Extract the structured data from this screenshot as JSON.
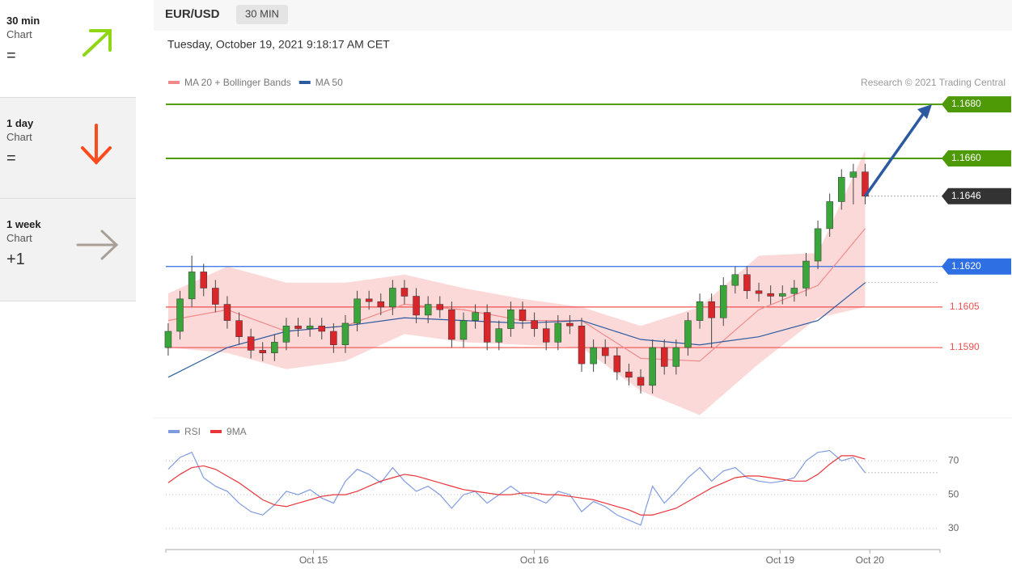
{
  "sidebar": [
    {
      "period": "30 min",
      "label": "Chart",
      "rating": "="
    },
    {
      "period": "1 day",
      "label": "Chart",
      "rating": "="
    },
    {
      "period": "1 week",
      "label": "Chart",
      "rating": "+1"
    }
  ],
  "header": {
    "symbol": "EUR/USD",
    "interval": "30 MIN",
    "timestamp": "Tuesday, October 19, 2021 9:18:17 AM CET"
  },
  "chart_data": [
    {
      "type": "candlestick",
      "credit": "Research © 2021 Trading Central",
      "open": [
        1.159,
        1.1596,
        1.1608,
        1.1618,
        1.1612,
        1.1606,
        1.16,
        1.1594,
        1.1589,
        1.1588,
        1.1592,
        1.1598,
        1.1597,
        1.1598,
        1.1596,
        1.1591,
        1.1599,
        1.1608,
        1.1607,
        1.1605,
        1.1612,
        1.1609,
        1.1602,
        1.1606,
        1.1604,
        1.1593,
        1.16,
        1.1603,
        1.1592,
        1.1597,
        1.1604,
        1.16,
        1.1597,
        1.1592,
        1.1599,
        1.1598,
        1.1584,
        1.159,
        1.1587,
        1.1581,
        1.1579,
        1.1576,
        1.159,
        1.1583,
        1.159,
        1.16,
        1.1607,
        1.1601,
        1.1613,
        1.1617,
        1.1611,
        1.161,
        1.1609,
        1.161,
        1.1612,
        1.1622,
        1.1634,
        1.1644,
        1.1653,
        1.1655
      ],
      "high": [
        1.1599,
        1.1611,
        1.1624,
        1.1621,
        1.1615,
        1.1609,
        1.1603,
        1.1597,
        1.1592,
        1.1595,
        1.1601,
        1.1601,
        1.1601,
        1.1601,
        1.1599,
        1.1602,
        1.1611,
        1.1611,
        1.161,
        1.1615,
        1.1615,
        1.1612,
        1.1609,
        1.1609,
        1.1607,
        1.1603,
        1.1606,
        1.1606,
        1.16,
        1.1607,
        1.1607,
        1.1603,
        1.16,
        1.1602,
        1.1602,
        1.1601,
        1.1593,
        1.1593,
        1.159,
        1.1584,
        1.1582,
        1.1593,
        1.1593,
        1.1593,
        1.1603,
        1.161,
        1.161,
        1.1616,
        1.162,
        1.162,
        1.1614,
        1.1613,
        1.1613,
        1.1615,
        1.1625,
        1.1637,
        1.1647,
        1.1656,
        1.1658,
        1.1658
      ],
      "low": [
        1.1587,
        1.1593,
        1.1605,
        1.1609,
        1.1603,
        1.1597,
        1.1591,
        1.1586,
        1.1585,
        1.1585,
        1.1589,
        1.1594,
        1.1594,
        1.1593,
        1.1588,
        1.1588,
        1.1596,
        1.1604,
        1.1602,
        1.1602,
        1.1606,
        1.1599,
        1.1599,
        1.1601,
        1.159,
        1.159,
        1.1597,
        1.1589,
        1.1589,
        1.1594,
        1.1597,
        1.1594,
        1.1589,
        1.1589,
        1.1595,
        1.1581,
        1.1581,
        1.1584,
        1.1578,
        1.1576,
        1.1573,
        1.1573,
        1.158,
        1.158,
        1.1587,
        1.1597,
        1.159,
        1.1598,
        1.161,
        1.1608,
        1.1607,
        1.1606,
        1.1606,
        1.1607,
        1.1609,
        1.1619,
        1.1631,
        1.1641,
        1.1643,
        1.1643
      ],
      "close": [
        1.1596,
        1.1608,
        1.1618,
        1.1612,
        1.1606,
        1.16,
        1.1594,
        1.1589,
        1.1588,
        1.1592,
        1.1598,
        1.1597,
        1.1598,
        1.1596,
        1.1591,
        1.1599,
        1.1608,
        1.1607,
        1.1605,
        1.1612,
        1.1609,
        1.1602,
        1.1606,
        1.1604,
        1.1593,
        1.16,
        1.1603,
        1.1592,
        1.1597,
        1.1604,
        1.16,
        1.1597,
        1.1592,
        1.1599,
        1.1598,
        1.1584,
        1.159,
        1.1587,
        1.1581,
        1.1579,
        1.1576,
        1.159,
        1.1583,
        1.159,
        1.16,
        1.1607,
        1.1601,
        1.1613,
        1.1617,
        1.1611,
        1.161,
        1.1609,
        1.161,
        1.1612,
        1.1622,
        1.1634,
        1.1644,
        1.1653,
        1.1655,
        1.1646
      ],
      "up_color": "#3aa53a",
      "down_color": "#d9262b",
      "series": [
        {
          "name": "MA 20 + Bollinger Bands",
          "color": "#f08a8a",
          "x": [
            0,
            5,
            10,
            15,
            20,
            25,
            30,
            35,
            40,
            45,
            50,
            55,
            59
          ],
          "values": [
            1.16,
            1.1604,
            1.1596,
            1.1598,
            1.1606,
            1.1604,
            1.16,
            1.16,
            1.1586,
            1.1585,
            1.1604,
            1.1613,
            1.1634
          ]
        },
        {
          "name": "MA 50",
          "color": "#2c5aa0",
          "x": [
            0,
            5,
            10,
            15,
            20,
            25,
            30,
            35,
            40,
            45,
            50,
            55,
            59
          ],
          "values": [
            1.1579,
            1.159,
            1.1596,
            1.1598,
            1.1601,
            1.16,
            1.1599,
            1.16,
            1.1593,
            1.1591,
            1.1594,
            1.16,
            1.1614
          ]
        }
      ],
      "bands": {
        "color": "#fcd9d9",
        "x": [
          0,
          5,
          10,
          15,
          20,
          25,
          30,
          35,
          40,
          45,
          50,
          55,
          59
        ],
        "upper": [
          1.161,
          1.162,
          1.1614,
          1.1614,
          1.1617,
          1.1612,
          1.1608,
          1.1605,
          1.1598,
          1.1605,
          1.1624,
          1.1625,
          1.1663
        ],
        "lower": [
          1.159,
          1.1588,
          1.1582,
          1.1585,
          1.1595,
          1.1592,
          1.1591,
          1.159,
          1.1574,
          1.1565,
          1.1584,
          1.1601,
          1.1605
        ]
      },
      "levels": [
        {
          "value": 1.168,
          "label": "1.1680",
          "color": "#4d9a06"
        },
        {
          "value": 1.166,
          "label": "1.1660",
          "color": "#4d9a06"
        },
        {
          "value": 1.162,
          "label": "1.1620",
          "color": "#2f6fe4"
        },
        {
          "value": 1.1605,
          "label": "1.1605",
          "color": "#f05050"
        },
        {
          "value": 1.159,
          "label": "1.1590",
          "color": "#f05050"
        }
      ],
      "current": {
        "value": 1.1646,
        "label": "1.1646",
        "color": "#333333"
      },
      "target_color": "#2c5aa0",
      "xlim": [
        -0.2,
        65.2
      ],
      "ylim": [
        1.15646,
        1.16857
      ],
      "xticks": [
        {
          "value": 12.3,
          "label": "Oct 15"
        },
        {
          "value": 31,
          "label": "Oct 16"
        },
        {
          "value": 51.8,
          "label": "Oct 19"
        },
        {
          "value": 59.4,
          "label": "Oct 20"
        }
      ]
    },
    {
      "type": "line",
      "series": [
        {
          "name": "RSI",
          "color": "#7f9be0",
          "values": [
            65,
            72,
            75,
            60,
            55,
            52,
            45,
            40,
            38,
            44,
            52,
            50,
            53,
            48,
            45,
            58,
            65,
            62,
            57,
            66,
            58,
            52,
            55,
            50,
            42,
            50,
            52,
            45,
            50,
            55,
            50,
            48,
            45,
            52,
            50,
            40,
            46,
            43,
            38,
            35,
            32,
            55,
            45,
            52,
            60,
            66,
            58,
            64,
            66,
            60,
            58,
            57,
            58,
            60,
            70,
            75,
            76,
            70,
            72,
            63
          ]
        },
        {
          "name": "9MA",
          "color": "#e8353a",
          "values": [
            57,
            62,
            66,
            67,
            65,
            61,
            57,
            52,
            47,
            44,
            43,
            45,
            47,
            49,
            50,
            50,
            52,
            55,
            58,
            60,
            62,
            61,
            59,
            57,
            55,
            53,
            52,
            51,
            50,
            50,
            51,
            51,
            50,
            50,
            49,
            48,
            47,
            45,
            43,
            41,
            38,
            38,
            40,
            42,
            46,
            50,
            54,
            57,
            60,
            61,
            61,
            60,
            59,
            58,
            58,
            62,
            68,
            73,
            73,
            71
          ]
        }
      ],
      "ylim": [
        20,
        82
      ],
      "yticks": [
        30,
        50,
        70
      ]
    }
  ]
}
